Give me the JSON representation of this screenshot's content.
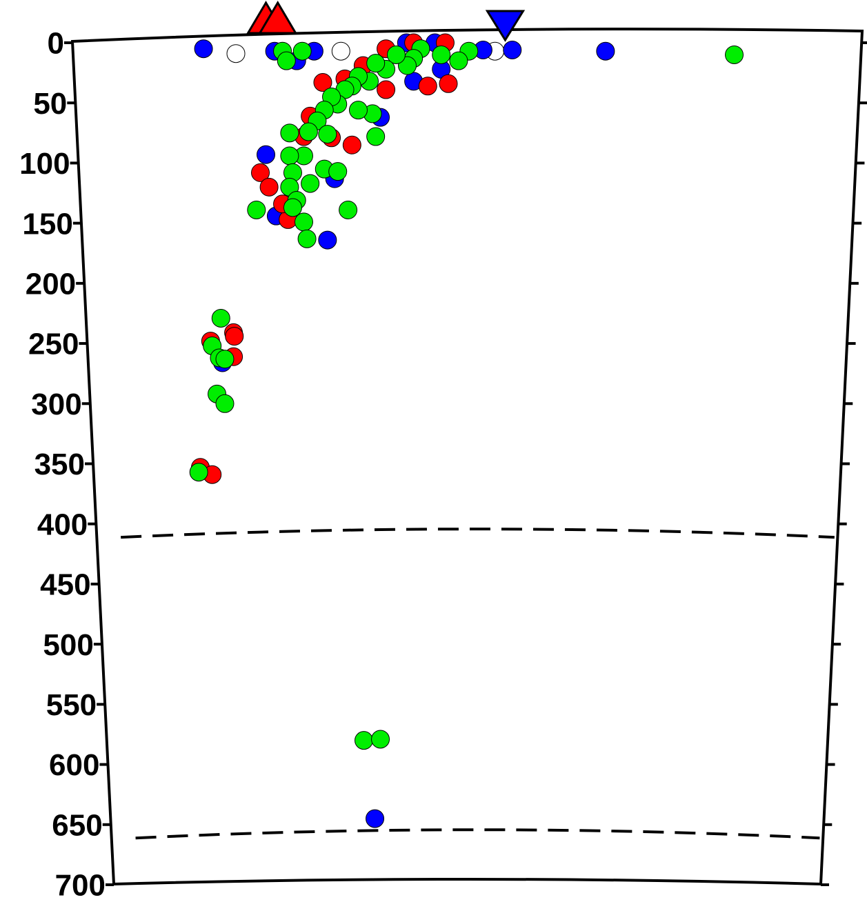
{
  "chart_data": {
    "type": "scatter",
    "ylim": [
      0,
      700
    ],
    "yticks": [
      0,
      50,
      100,
      150,
      200,
      250,
      300,
      350,
      400,
      450,
      500,
      550,
      600,
      650,
      700
    ],
    "xlim": [
      0,
      100
    ],
    "y_inverted": true,
    "reference_lines": [
      410,
      660
    ],
    "series": [
      {
        "color": "#ffffff",
        "x": [
          20.7,
          34,
          53.5
        ],
        "values": [
          9,
          7,
          7
        ]
      },
      {
        "color": "#0000ff",
        "x": [
          16.6,
          55.7,
          67.5,
          52,
          25.6,
          30.6,
          28.4,
          24.5,
          25.8,
          32.3,
          33.2,
          19,
          38.3,
          39,
          42.3,
          45.9,
          43.2,
          46.7
        ],
        "values": [
          5,
          6,
          7,
          6,
          7,
          7,
          15,
          93,
          144,
          164,
          113,
          266,
          645,
          62,
          0,
          0,
          32,
          22
        ]
      },
      {
        "color": "#ff0000",
        "x": [
          16.2,
          17.7,
          20.4,
          20.5,
          20.4,
          17.5,
          23.8,
          24.9,
          27.3,
          31.7,
          30.1,
          29.3,
          32.8,
          35.4,
          34.5,
          36.8,
          39.7,
          43.2,
          47.2,
          45,
          47.6,
          39.7,
          26.6
        ],
        "values": [
          353,
          359,
          241,
          244,
          261,
          248,
          108,
          120,
          147,
          33,
          61,
          78,
          79,
          85,
          30,
          19,
          5,
          0,
          0,
          36,
          34,
          39,
          134
        ]
      },
      {
        "color": "#00ee00",
        "x": [
          83.8,
          50.2,
          48.9,
          46.7,
          44.1,
          43.2,
          42.4,
          41,
          39.7,
          38.4,
          37.6,
          36.2,
          35.4,
          34.5,
          33.6,
          32.8,
          31.9,
          31,
          32.3,
          29.9,
          29.3,
          27.5,
          27.5,
          27.9,
          27.5,
          28.4,
          27.9,
          30.1,
          31.9,
          33.6,
          34.9,
          23.3,
          29.3,
          29.7,
          38.4,
          38,
          36.2,
          26.6,
          27.1,
          29.1,
          18.8,
          17.7,
          18.6,
          19.3,
          18.3,
          19.3,
          16,
          36.9,
          39
        ],
        "values": [
          10,
          7,
          15,
          10,
          5,
          13,
          19,
          10,
          22,
          17,
          32,
          28,
          36,
          39,
          51,
          45,
          56,
          65,
          76,
          74,
          94,
          75,
          94,
          108,
          120,
          131,
          137,
          117,
          105,
          107,
          139,
          139,
          149,
          163,
          78,
          59,
          56,
          7,
          15,
          7,
          229,
          252,
          262,
          263,
          292,
          300,
          357,
          580,
          579
        ]
      }
    ],
    "markers": [
      {
        "shape": "triangle-up",
        "color": "#ff0000",
        "x": 24.5
      },
      {
        "shape": "triangle-up",
        "color": "#ff0000",
        "x": 26
      },
      {
        "shape": "triangle-down",
        "color": "#0000ff",
        "x": 54.8
      }
    ]
  }
}
